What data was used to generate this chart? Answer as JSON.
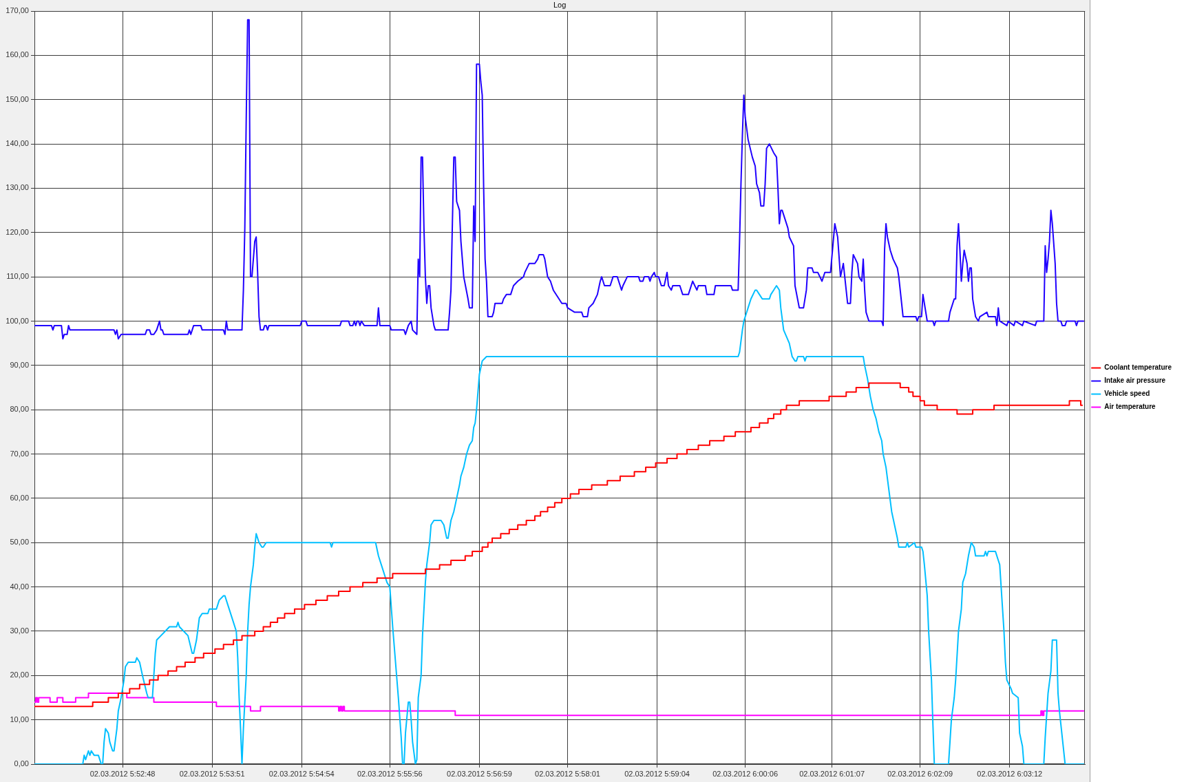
{
  "chart_data": {
    "type": "line",
    "title": "Log",
    "xlim": [
      "2012-03-02T05:51:46",
      "2012-03-02T06:04:05"
    ],
    "ylim": [
      0,
      170
    ],
    "xticks": [
      {
        "value": "2012-03-02T05:52:48",
        "label": "02.03.2012 5:52:48"
      },
      {
        "value": "2012-03-02T05:53:51",
        "label": "02.03.2012 5:53:51"
      },
      {
        "value": "2012-03-02T05:54:54",
        "label": "02.03.2012 5:54:54"
      },
      {
        "value": "2012-03-02T05:55:56",
        "label": "02.03.2012 5:55:56"
      },
      {
        "value": "2012-03-02T05:56:59",
        "label": "02.03.2012 5:56:59"
      },
      {
        "value": "2012-03-02T05:58:01",
        "label": "02.03.2012 5:58:01"
      },
      {
        "value": "2012-03-02T05:59:04",
        "label": "02.03.2012 5:59:04"
      },
      {
        "value": "2012-03-02T06:00:06",
        "label": "02.03.2012 6:00:06"
      },
      {
        "value": "2012-03-02T06:01:07",
        "label": "02.03.2012 6:01:07"
      },
      {
        "value": "2012-03-02T06:02:09",
        "label": "02.03.2012 6:02:09"
      },
      {
        "value": "2012-03-02T06:03:12",
        "label": "02.03.2012 6:03:12"
      }
    ],
    "yticks": [
      {
        "value": 0,
        "label": "0,00"
      },
      {
        "value": 10,
        "label": "10,00"
      },
      {
        "value": 20,
        "label": "20,00"
      },
      {
        "value": 30,
        "label": "30,00"
      },
      {
        "value": 40,
        "label": "40,00"
      },
      {
        "value": 50,
        "label": "50,00"
      },
      {
        "value": 60,
        "label": "60,00"
      },
      {
        "value": 70,
        "label": "70,00"
      },
      {
        "value": 80,
        "label": "80,00"
      },
      {
        "value": 90,
        "label": "90,00"
      },
      {
        "value": 100,
        "label": "100,00"
      },
      {
        "value": 110,
        "label": "110,00"
      },
      {
        "value": 120,
        "label": "120,00"
      },
      {
        "value": 130,
        "label": "130,00"
      },
      {
        "value": 140,
        "label": "140,00"
      },
      {
        "value": 150,
        "label": "150,00"
      },
      {
        "value": 160,
        "label": "160,00"
      },
      {
        "value": 170,
        "label": "170,00"
      }
    ],
    "grid": true,
    "legend": "right",
    "series": [
      {
        "name": "Coolant temperature",
        "type": "step",
        "color": "#ff0000",
        "x": [
          "2012-03-02T05:51:46",
          "2012-03-02T05:52:27",
          "2012-03-02T05:52:38",
          "2012-03-02T05:52:45",
          "2012-03-02T05:52:53",
          "2012-03-02T05:53:00",
          "2012-03-02T05:53:07",
          "2012-03-02T05:53:13",
          "2012-03-02T05:53:20",
          "2012-03-02T05:53:26",
          "2012-03-02T05:53:32",
          "2012-03-02T05:53:39",
          "2012-03-02T05:53:45",
          "2012-03-02T05:53:53",
          "2012-03-02T05:53:59",
          "2012-03-02T05:54:06",
          "2012-03-02T05:54:12",
          "2012-03-02T05:54:21",
          "2012-03-02T05:54:27",
          "2012-03-02T05:54:32",
          "2012-03-02T05:54:37",
          "2012-03-02T05:54:42",
          "2012-03-02T05:54:49",
          "2012-03-02T05:54:56",
          "2012-03-02T05:55:04",
          "2012-03-02T05:55:12",
          "2012-03-02T05:55:20",
          "2012-03-02T05:55:28",
          "2012-03-02T05:55:37",
          "2012-03-02T05:55:47",
          "2012-03-02T05:55:58",
          "2012-03-02T05:56:21",
          "2012-03-02T05:56:31",
          "2012-03-02T05:56:39",
          "2012-03-02T05:56:49",
          "2012-03-02T05:56:54",
          "2012-03-02T05:57:01",
          "2012-03-02T05:57:05",
          "2012-03-02T05:57:08",
          "2012-03-02T05:57:14",
          "2012-03-02T05:57:20",
          "2012-03-02T05:57:26",
          "2012-03-02T05:57:32",
          "2012-03-02T05:57:38",
          "2012-03-02T05:57:42",
          "2012-03-02T05:57:47",
          "2012-03-02T05:57:52",
          "2012-03-02T05:57:57",
          "2012-03-02T05:58:03",
          "2012-03-02T05:58:09",
          "2012-03-02T05:58:18",
          "2012-03-02T05:58:29",
          "2012-03-02T05:58:38",
          "2012-03-02T05:58:48",
          "2012-03-02T05:58:56",
          "2012-03-02T05:59:03",
          "2012-03-02T05:59:11",
          "2012-03-02T05:59:18",
          "2012-03-02T05:59:25",
          "2012-03-02T05:59:33",
          "2012-03-02T05:59:41",
          "2012-03-02T05:59:51",
          "2012-03-02T05:59:59",
          "2012-03-02T06:00:10",
          "2012-03-02T06:00:16",
          "2012-03-02T06:00:22",
          "2012-03-02T06:00:26",
          "2012-03-02T06:00:31",
          "2012-03-02T06:00:35",
          "2012-03-02T06:00:44",
          "2012-03-02T06:01:05",
          "2012-03-02T06:01:17",
          "2012-03-02T06:01:24",
          "2012-03-02T06:01:33",
          "2012-03-02T06:01:55",
          "2012-03-02T06:02:01",
          "2012-03-02T06:02:04",
          "2012-03-02T06:02:09",
          "2012-03-02T06:02:12",
          "2012-03-02T06:02:21",
          "2012-03-02T06:02:35",
          "2012-03-02T06:02:46",
          "2012-03-02T06:03:01",
          "2012-03-02T06:03:54",
          "2012-03-02T06:04:02",
          "2012-03-02T06:04:03"
        ],
        "values": [
          13,
          14,
          15,
          16,
          17,
          18,
          19,
          20,
          21,
          22,
          23,
          24,
          25,
          26,
          27,
          28,
          29,
          30,
          31,
          32,
          33,
          34,
          35,
          36,
          37,
          38,
          39,
          40,
          41,
          42,
          43,
          44,
          45,
          46,
          47,
          48,
          49,
          50,
          51,
          52,
          53,
          54,
          55,
          56,
          57,
          58,
          59,
          60,
          61,
          62,
          63,
          64,
          65,
          66,
          67,
          68,
          69,
          70,
          71,
          72,
          73,
          74,
          75,
          76,
          77,
          78,
          79,
          80,
          81,
          82,
          83,
          84,
          85,
          86,
          85,
          84,
          83,
          82,
          81,
          80,
          79,
          80,
          81,
          82,
          81,
          81
        ]
      },
      {
        "name": "Intake air pressure",
        "color": "#2000ff",
        "x": [
          "2012-03-02T05:51:46",
          "2012-03-02T05:51:58",
          "2012-03-02T05:51:59",
          "2012-03-02T05:52:00",
          "2012-03-02T05:52:05",
          "2012-03-02T05:52:06",
          "2012-03-02T05:52:07",
          "2012-03-02T05:52:09",
          "2012-03-02T05:52:10",
          "2012-03-02T05:52:11",
          "2012-03-02T05:52:42",
          "2012-03-02T05:52:43",
          "2012-03-02T05:52:44",
          "2012-03-02T05:52:45",
          "2012-03-02T05:52:47",
          "2012-03-02T05:53:04",
          "2012-03-02T05:53:05",
          "2012-03-02T05:53:07",
          "2012-03-02T05:53:08",
          "2012-03-02T05:53:10",
          "2012-03-02T05:53:12",
          "2012-03-02T05:53:13",
          "2012-03-02T05:53:14",
          "2012-03-02T05:53:15",
          "2012-03-02T05:53:16",
          "2012-03-02T05:53:17",
          "2012-03-02T05:53:34",
          "2012-03-02T05:53:35",
          "2012-03-02T05:53:36",
          "2012-03-02T05:53:37",
          "2012-03-02T05:53:38",
          "2012-03-02T05:53:43",
          "2012-03-02T05:53:44",
          "2012-03-02T05:53:59",
          "2012-03-02T05:54:00",
          "2012-03-02T05:54:01",
          "2012-03-02T05:54:02",
          "2012-03-02T05:54:12",
          "2012-03-02T05:54:13",
          "2012-03-02T05:54:14",
          "2012-03-02T05:54:15",
          "2012-03-02T05:54:16",
          "2012-03-02T05:54:17",
          "2012-03-02T05:54:18",
          "2012-03-02T05:54:19",
          "2012-03-02T05:54:20",
          "2012-03-02T05:54:21",
          "2012-03-02T05:54:22",
          "2012-03-02T05:54:23",
          "2012-03-02T05:54:24",
          "2012-03-02T05:54:25",
          "2012-03-02T05:54:27",
          "2012-03-02T05:54:28",
          "2012-03-02T05:54:29",
          "2012-03-02T05:54:30",
          "2012-03-02T05:54:31",
          "2012-03-02T05:54:53",
          "2012-03-02T05:54:54",
          "2012-03-02T05:54:57",
          "2012-03-02T05:54:58",
          "2012-03-02T05:55:21",
          "2012-03-02T05:55:22",
          "2012-03-02T05:55:27",
          "2012-03-02T05:55:28",
          "2012-03-02T05:55:30",
          "2012-03-02T05:55:31",
          "2012-03-02T05:55:32",
          "2012-03-02T05:55:33",
          "2012-03-02T05:55:34",
          "2012-03-02T05:55:35",
          "2012-03-02T05:55:36",
          "2012-03-02T05:55:38",
          "2012-03-02T05:55:47",
          "2012-03-02T05:55:48",
          "2012-03-02T05:55:49",
          "2012-03-02T05:55:56",
          "2012-03-02T05:55:57",
          "2012-03-02T05:56:06",
          "2012-03-02T05:56:07",
          "2012-03-02T05:56:08",
          "2012-03-02T05:56:09",
          "2012-03-02T05:56:11",
          "2012-03-02T05:56:12",
          "2012-03-02T05:56:15",
          "2012-03-02T05:56:16",
          "2012-03-02T05:56:17",
          "2012-03-02T05:56:18",
          "2012-03-02T05:56:19",
          "2012-03-02T05:56:20",
          "2012-03-02T05:56:21",
          "2012-03-02T05:56:22",
          "2012-03-02T05:56:23",
          "2012-03-02T05:56:24",
          "2012-03-02T05:56:25",
          "2012-03-02T05:56:27",
          "2012-03-02T05:56:28",
          "2012-03-02T05:56:37",
          "2012-03-02T05:56:38",
          "2012-03-02T05:56:39",
          "2012-03-02T05:56:40",
          "2012-03-02T05:56:41",
          "2012-03-02T05:56:42",
          "2012-03-02T05:56:43",
          "2012-03-02T05:56:45",
          "2012-03-02T05:56:46",
          "2012-03-02T05:56:48",
          "2012-03-02T05:56:51",
          "2012-03-02T05:56:52",
          "2012-03-02T05:56:54",
          "2012-03-02T05:56:55",
          "2012-03-02T05:56:56",
          "2012-03-02T05:56:57",
          "2012-03-02T05:56:59",
          "2012-03-02T05:57:00",
          "2012-03-02T05:57:01",
          "2012-03-02T05:57:02",
          "2012-03-02T05:57:03",
          "2012-03-02T05:57:04",
          "2012-03-02T05:57:05",
          "2012-03-02T05:57:08",
          "2012-03-02T05:57:09",
          "2012-03-02T05:57:10",
          "2012-03-02T05:57:15",
          "2012-03-02T05:57:16",
          "2012-03-02T05:57:18",
          "2012-03-02T05:57:21",
          "2012-03-02T05:57:22",
          "2012-03-02T05:57:23",
          "2012-03-02T05:57:26",
          "2012-03-02T05:57:30",
          "2012-03-02T05:57:31",
          "2012-03-02T05:57:34",
          "2012-03-02T05:57:38",
          "2012-03-02T05:57:40",
          "2012-03-02T05:57:41",
          "2012-03-02T05:57:44",
          "2012-03-02T05:57:45",
          "2012-03-02T05:57:46",
          "2012-03-02T05:57:47",
          "2012-03-02T05:57:49",
          "2012-03-02T05:57:51",
          "2012-03-02T05:57:55",
          "2012-03-02T05:57:57",
          "2012-03-02T05:58:00",
          "2012-03-02T05:58:01",
          "2012-03-02T05:58:06",
          "2012-03-02T05:58:11",
          "2012-03-02T05:58:12",
          "2012-03-02T05:58:15",
          "2012-03-02T05:58:16",
          "2012-03-02T05:58:19",
          "2012-03-02T05:58:22",
          "2012-03-02T05:58:24",
          "2012-03-02T05:58:25",
          "2012-03-02T05:58:27",
          "2012-03-02T05:58:31",
          "2012-03-02T05:58:33",
          "2012-03-02T05:58:36",
          "2012-03-02T05:58:38",
          "2012-03-02T05:58:39",
          "2012-03-02T05:58:40",
          "2012-03-02T05:58:43",
          "2012-03-02T05:58:51",
          "2012-03-02T05:58:52",
          "2012-03-02T05:58:54",
          "2012-03-02T05:58:55",
          "2012-03-02T05:58:58",
          "2012-03-02T05:58:59",
          "2012-03-02T05:59:00",
          "2012-03-02T05:59:02",
          "2012-03-02T05:59:03",
          "2012-03-02T05:59:05",
          "2012-03-02T05:59:07",
          "2012-03-02T05:59:09",
          "2012-03-02T05:59:11",
          "2012-03-02T05:59:12",
          "2012-03-02T05:59:14",
          "2012-03-02T05:59:15",
          "2012-03-02T05:59:20",
          "2012-03-02T05:59:22",
          "2012-03-02T05:59:26",
          "2012-03-02T05:59:29",
          "2012-03-02T05:59:32",
          "2012-03-02T05:59:33",
          "2012-03-02T05:59:38",
          "2012-03-02T05:59:39",
          "2012-03-02T05:59:44",
          "2012-03-02T05:59:45",
          "2012-03-02T05:59:56",
          "2012-03-02T05:59:57",
          "2012-03-02T06:00:01",
          "2012-03-02T06:00:02",
          "2012-03-02T06:00:03",
          "2012-03-02T06:00:04",
          "2012-03-02T06:00:05",
          "2012-03-02T06:00:06",
          "2012-03-02T06:00:08",
          "2012-03-02T06:00:11",
          "2012-03-02T06:00:13",
          "2012-03-02T06:00:14",
          "2012-03-02T06:00:16",
          "2012-03-02T06:00:17",
          "2012-03-02T06:00:19",
          "2012-03-02T06:00:20",
          "2012-03-02T06:00:21",
          "2012-03-02T06:00:23",
          "2012-03-02T06:00:26",
          "2012-03-02T06:00:28",
          "2012-03-02T06:00:29",
          "2012-03-02T06:00:30",
          "2012-03-02T06:00:31",
          "2012-03-02T06:00:32",
          "2012-03-02T06:00:35",
          "2012-03-02T06:00:36",
          "2012-03-02T06:00:37",
          "2012-03-02T06:00:40",
          "2012-03-02T06:00:41",
          "2012-03-02T06:00:44",
          "2012-03-02T06:00:47",
          "2012-03-02T06:00:49",
          "2012-03-02T06:00:50",
          "2012-03-02T06:00:53",
          "2012-03-02T06:00:54",
          "2012-03-02T06:00:57",
          "2012-03-02T06:01:00",
          "2012-03-02T06:01:02",
          "2012-03-02T06:01:06",
          "2012-03-02T06:01:09",
          "2012-03-02T06:01:11",
          "2012-03-02T06:01:13",
          "2012-03-02T06:01:15",
          "2012-03-02T06:01:16",
          "2012-03-02T06:01:18",
          "2012-03-02T06:01:20",
          "2012-03-02T06:01:21",
          "2012-03-02T06:01:22",
          "2012-03-02T06:01:25",
          "2012-03-02T06:01:26",
          "2012-03-02T06:01:28",
          "2012-03-02T06:01:29",
          "2012-03-02T06:01:30",
          "2012-03-02T06:01:31",
          "2012-03-02T06:01:33",
          "2012-03-02T06:01:42",
          "2012-03-02T06:01:43",
          "2012-03-02T06:01:44",
          "2012-03-02T06:01:45",
          "2012-03-02T06:01:46",
          "2012-03-02T06:01:48",
          "2012-03-02T06:01:50",
          "2012-03-02T06:01:53",
          "2012-03-02T06:01:54",
          "2012-03-02T06:01:56",
          "2012-03-02T06:01:57",
          "2012-03-02T06:02:06",
          "2012-03-02T06:02:07",
          "2012-03-02T06:02:08",
          "2012-03-02T06:02:10",
          "2012-03-02T06:02:11",
          "2012-03-02T06:02:12",
          "2012-03-02T06:02:14",
          "2012-03-02T06:02:18",
          "2012-03-02T06:02:19",
          "2012-03-02T06:02:20",
          "2012-03-02T06:02:29",
          "2012-03-02T06:02:30",
          "2012-03-02T06:02:33",
          "2012-03-02T06:02:34",
          "2012-03-02T06:02:35",
          "2012-03-02T06:02:36",
          "2012-03-02T06:02:37",
          "2012-03-02T06:02:38",
          "2012-03-02T06:02:39",
          "2012-03-02T06:02:40",
          "2012-03-02T06:02:42",
          "2012-03-02T06:02:43",
          "2012-03-02T06:02:44",
          "2012-03-02T06:02:45",
          "2012-03-02T06:02:46",
          "2012-03-02T06:02:48",
          "2012-03-02T06:02:50",
          "2012-03-02T06:02:51",
          "2012-03-02T06:02:56",
          "2012-03-02T06:02:57",
          "2012-03-02T06:03:02",
          "2012-03-02T06:03:03",
          "2012-03-02T06:03:04",
          "2012-03-02T06:03:05",
          "2012-03-02T06:03:10",
          "2012-03-02T06:03:11",
          "2012-03-02T06:03:15",
          "2012-03-02T06:03:16",
          "2012-03-02T06:03:21",
          "2012-03-02T06:03:22",
          "2012-03-02T06:03:30",
          "2012-03-02T06:03:31",
          "2012-03-02T06:03:36",
          "2012-03-02T06:03:37",
          "2012-03-02T06:03:38",
          "2012-03-02T06:03:39",
          "2012-03-02T06:03:40",
          "2012-03-02T06:03:41",
          "2012-03-02T06:03:42",
          "2012-03-02T06:03:44",
          "2012-03-02T06:03:45",
          "2012-03-02T06:03:46",
          "2012-03-02T06:03:48",
          "2012-03-02T06:03:49",
          "2012-03-02T06:03:51",
          "2012-03-02T06:03:52",
          "2012-03-02T06:03:58",
          "2012-03-02T06:03:59",
          "2012-03-02T06:04:00",
          "2012-03-02T06:04:04"
        ],
        "values": [
          99,
          99,
          98,
          99,
          99,
          96,
          97,
          97,
          99,
          98,
          98,
          97,
          98,
          96,
          97,
          97,
          98,
          98,
          97,
          97,
          98,
          99,
          100,
          98,
          98,
          97,
          97,
          98,
          97,
          98,
          99,
          99,
          98,
          98,
          97,
          100,
          98,
          98,
          107,
          121,
          146,
          168,
          168,
          110,
          110,
          114,
          118,
          119,
          111,
          101,
          98,
          98,
          99,
          99,
          98,
          99,
          99,
          100,
          100,
          99,
          99,
          100,
          100,
          99,
          99,
          100,
          99,
          100,
          100,
          99,
          100,
          99,
          99,
          103,
          99,
          99,
          98,
          98,
          97,
          98,
          99,
          100,
          98,
          97,
          114,
          110,
          137,
          137,
          121,
          110,
          104,
          108,
          108,
          103,
          99,
          98,
          98,
          102,
          107,
          122,
          137,
          137,
          127,
          125,
          118,
          110,
          105,
          103,
          103,
          126,
          118,
          158,
          158,
          154,
          151,
          130,
          114,
          109,
          101,
          101,
          102,
          104,
          104,
          105,
          106,
          106,
          107,
          108,
          109,
          110,
          111,
          113,
          113,
          114,
          115,
          115,
          114,
          112,
          110,
          109,
          107,
          105,
          104,
          104,
          103,
          102,
          102,
          101,
          101,
          103,
          104,
          106,
          109,
          110,
          108,
          108,
          110,
          110,
          108,
          107,
          108,
          110,
          110,
          109,
          109,
          110,
          110,
          109,
          110,
          111,
          110,
          110,
          108,
          108,
          111,
          108,
          107,
          108,
          108,
          106,
          106,
          109,
          107,
          108,
          108,
          106,
          106,
          108,
          108,
          107,
          107,
          118,
          131,
          142,
          151,
          146,
          141,
          137,
          135,
          131,
          129,
          126,
          126,
          131,
          139,
          140,
          138,
          137,
          130,
          122,
          125,
          125,
          122,
          121,
          119,
          117,
          108,
          103,
          103,
          107,
          112,
          112,
          111,
          111,
          109,
          111,
          111,
          122,
          119,
          110,
          113,
          110,
          104,
          104,
          111,
          115,
          113,
          110,
          109,
          114,
          107,
          102,
          100,
          100,
          99,
          116,
          122,
          119,
          116,
          114,
          112,
          110,
          104,
          101,
          101,
          100,
          101,
          101,
          106,
          104,
          100,
          100,
          99,
          100,
          100,
          102,
          105,
          105,
          117,
          122,
          116,
          109,
          113,
          116,
          113,
          109,
          112,
          112,
          105,
          101,
          100,
          101,
          102,
          101,
          101,
          99,
          103,
          100,
          99,
          100,
          99,
          100,
          99,
          100,
          99,
          100,
          100,
          117,
          111,
          114,
          118,
          125,
          122,
          113,
          104,
          100,
          100,
          99,
          99,
          100,
          100,
          99,
          100,
          100
        ]
      },
      {
        "name": "Vehicle speed",
        "color": "#00bfff",
        "x": [
          "2012-03-02T05:51:46",
          "2012-03-02T05:52:20",
          "2012-03-02T05:52:21",
          "2012-03-02T05:52:22",
          "2012-03-02T05:52:24",
          "2012-03-02T05:52:25",
          "2012-03-02T05:52:26",
          "2012-03-02T05:52:28",
          "2012-03-02T05:52:31",
          "2012-03-02T05:52:33",
          "2012-03-02T05:52:34",
          "2012-03-02T05:52:35",
          "2012-03-02T05:52:36",
          "2012-03-02T05:52:38",
          "2012-03-02T05:52:39",
          "2012-03-02T05:52:41",
          "2012-03-02T05:52:42",
          "2012-03-02T05:52:44",
          "2012-03-02T05:52:45",
          "2012-03-02T05:52:47",
          "2012-03-02T05:52:49",
          "2012-03-02T05:52:50",
          "2012-03-02T05:52:52",
          "2012-03-02T05:52:57",
          "2012-03-02T05:52:58",
          "2012-03-02T05:53:00",
          "2012-03-02T05:53:02",
          "2012-03-02T05:53:05",
          "2012-03-02T05:53:06",
          "2012-03-02T05:53:09",
          "2012-03-02T05:53:10",
          "2012-03-02T05:53:11",
          "2012-03-02T05:53:12",
          "2012-03-02T05:53:15",
          "2012-03-02T05:53:18",
          "2012-03-02T05:53:21",
          "2012-03-02T05:53:26",
          "2012-03-02T05:53:27",
          "2012-03-02T05:53:28",
          "2012-03-02T05:53:31",
          "2012-03-02T05:53:34",
          "2012-03-02T05:53:37",
          "2012-03-02T05:53:38",
          "2012-03-02T05:53:40",
          "2012-03-02T05:53:42",
          "2012-03-02T05:53:44",
          "2012-03-02T05:53:48",
          "2012-03-02T05:53:49",
          "2012-03-02T05:53:54",
          "2012-03-02T05:53:56",
          "2012-03-02T05:53:59",
          "2012-03-02T05:54:00",
          "2012-03-02T05:54:02",
          "2012-03-02T05:54:05",
          "2012-03-02T05:54:08",
          "2012-03-02T05:54:09",
          "2012-03-02T05:54:10",
          "2012-03-02T05:54:11",
          "2012-03-02T05:54:12",
          "2012-03-02T05:54:13",
          "2012-03-02T05:54:15",
          "2012-03-02T05:54:16",
          "2012-03-02T05:54:17",
          "2012-03-02T05:54:18",
          "2012-03-02T05:54:20",
          "2012-03-02T05:54:21",
          "2012-03-02T05:54:22",
          "2012-03-02T05:54:24",
          "2012-03-02T05:54:26",
          "2012-03-02T05:54:27",
          "2012-03-02T05:54:29",
          "2012-03-02T05:55:14",
          "2012-03-02T05:55:15",
          "2012-03-02T05:55:16",
          "2012-03-02T05:55:46",
          "2012-03-02T05:55:48",
          "2012-03-02T05:55:50",
          "2012-03-02T05:55:53",
          "2012-03-02T05:55:54",
          "2012-03-02T05:55:56",
          "2012-03-02T05:55:58",
          "2012-03-02T05:56:00",
          "2012-03-02T05:56:02",
          "2012-03-02T05:56:04",
          "2012-03-02T05:56:05",
          "2012-03-02T05:56:06",
          "2012-03-02T05:56:07",
          "2012-03-02T05:56:09",
          "2012-03-02T05:56:10",
          "2012-03-02T05:56:11",
          "2012-03-02T05:56:12",
          "2012-03-02T05:56:14",
          "2012-03-02T05:56:15",
          "2012-03-02T05:56:16",
          "2012-03-02T05:56:18",
          "2012-03-02T05:56:19",
          "2012-03-02T05:56:20",
          "2012-03-02T05:56:21",
          "2012-03-02T05:56:22",
          "2012-03-02T05:56:24",
          "2012-03-02T05:56:25",
          "2012-03-02T05:56:27",
          "2012-03-02T05:56:32",
          "2012-03-02T05:56:34",
          "2012-03-02T05:56:36",
          "2012-03-02T05:56:37",
          "2012-03-02T05:56:39",
          "2012-03-02T05:56:41",
          "2012-03-02T05:56:43",
          "2012-03-02T05:56:45",
          "2012-03-02T05:56:46",
          "2012-03-02T05:56:48",
          "2012-03-02T05:56:50",
          "2012-03-02T05:56:52",
          "2012-03-02T05:56:54",
          "2012-03-02T05:56:55",
          "2012-03-02T05:56:56",
          "2012-03-02T05:56:57",
          "2012-03-02T05:56:58",
          "2012-03-02T05:56:59",
          "2012-03-02T05:57:01",
          "2012-03-02T05:57:04",
          "2012-03-02T06:00:01",
          "2012-03-02T06:00:02",
          "2012-03-02T06:00:04",
          "2012-03-02T06:00:05",
          "2012-03-02T06:00:08",
          "2012-03-02T06:00:10",
          "2012-03-02T06:00:13",
          "2012-03-02T06:00:14",
          "2012-03-02T06:00:16",
          "2012-03-02T06:00:18",
          "2012-03-02T06:00:23",
          "2012-03-02T06:00:24",
          "2012-03-02T06:00:26",
          "2012-03-02T06:00:28",
          "2012-03-02T06:00:30",
          "2012-03-02T06:00:31",
          "2012-03-02T06:00:33",
          "2012-03-02T06:00:37",
          "2012-03-02T06:00:39",
          "2012-03-02T06:00:41",
          "2012-03-02T06:00:42",
          "2012-03-02T06:00:43",
          "2012-03-02T06:00:47",
          "2012-03-02T06:00:48",
          "2012-03-02T06:00:49",
          "2012-03-02T06:01:29",
          "2012-03-02T06:01:30",
          "2012-03-02T06:01:32",
          "2012-03-02T06:01:34",
          "2012-03-02T06:01:36",
          "2012-03-02T06:01:38",
          "2012-03-02T06:01:40",
          "2012-03-02T06:01:42",
          "2012-03-02T06:01:43",
          "2012-03-02T06:01:45",
          "2012-03-02T06:01:47",
          "2012-03-02T06:01:49",
          "2012-03-02T06:01:51",
          "2012-03-02T06:01:53",
          "2012-03-02T06:01:54",
          "2012-03-02T06:01:59",
          "2012-03-02T06:02:00",
          "2012-03-02T06:02:01",
          "2012-03-02T06:02:05",
          "2012-03-02T06:02:06",
          "2012-03-02T06:02:10",
          "2012-03-02T06:02:11",
          "2012-03-02T06:02:12",
          "2012-03-02T06:02:14",
          "2012-03-02T06:02:15",
          "2012-03-02T06:02:17",
          "2012-03-02T06:02:18",
          "2012-03-02T06:02:19",
          "2012-03-02T06:02:29",
          "2012-03-02T06:02:31",
          "2012-03-02T06:02:33",
          "2012-03-02T06:02:34",
          "2012-03-02T06:02:36",
          "2012-03-02T06:02:38",
          "2012-03-02T06:02:39",
          "2012-03-02T06:02:41",
          "2012-03-02T06:02:43",
          "2012-03-02T06:02:45",
          "2012-03-02T06:02:47",
          "2012-03-02T06:02:48",
          "2012-03-02T06:02:54",
          "2012-03-02T06:02:55",
          "2012-03-02T06:02:56",
          "2012-03-02T06:02:57",
          "2012-03-02T06:03:02",
          "2012-03-02T06:03:04",
          "2012-03-02T06:03:05",
          "2012-03-02T06:03:06",
          "2012-03-02T06:03:08",
          "2012-03-02T06:03:09",
          "2012-03-02T06:03:10",
          "2012-03-02T06:03:13",
          "2012-03-02T06:03:14",
          "2012-03-02T06:03:18",
          "2012-03-02T06:03:19",
          "2012-03-02T06:03:21",
          "2012-03-02T06:03:22",
          "2012-03-02T06:03:36",
          "2012-03-02T06:03:37",
          "2012-03-02T06:03:39",
          "2012-03-02T06:03:41",
          "2012-03-02T06:03:42",
          "2012-03-02T06:03:45",
          "2012-03-02T06:03:46",
          "2012-03-02T06:03:47",
          "2012-03-02T06:03:49",
          "2012-03-02T06:03:51",
          "2012-03-02T06:04:04"
        ],
        "values": [
          0,
          0,
          2,
          1,
          3,
          2,
          3,
          2,
          2,
          0,
          0,
          5,
          8,
          7,
          5,
          3,
          3,
          8,
          12,
          15,
          19,
          22,
          23,
          23,
          24,
          23,
          20,
          16,
          15,
          15,
          20,
          25,
          28,
          29,
          30,
          31,
          31,
          32,
          31,
          30,
          29,
          25,
          25,
          28,
          33,
          34,
          34,
          35,
          35,
          37,
          38,
          38,
          36,
          33,
          30,
          24,
          15,
          8,
          0,
          8,
          20,
          30,
          36,
          40,
          45,
          49,
          52,
          50,
          49,
          49,
          50,
          50,
          49,
          50,
          50,
          47,
          45,
          42,
          41,
          40,
          31,
          23,
          15,
          6,
          0,
          0,
          7,
          14,
          14,
          10,
          5,
          0,
          1,
          15,
          20,
          29,
          35,
          41,
          45,
          50,
          54,
          55,
          55,
          54,
          51,
          51,
          55,
          57,
          60,
          63,
          65,
          67,
          70,
          72,
          73,
          76,
          77,
          80,
          84,
          88,
          91,
          92,
          92,
          93,
          98,
          100,
          103,
          105,
          107,
          107,
          106,
          105,
          105,
          106,
          107,
          108,
          107,
          103,
          98,
          95,
          92,
          91,
          91,
          92,
          92,
          91,
          92,
          92,
          90,
          87,
          83,
          80,
          78,
          75,
          73,
          70,
          67,
          62,
          57,
          54,
          51,
          49,
          49,
          50,
          49,
          50,
          49,
          49,
          48,
          45,
          38,
          30,
          19,
          9,
          0,
          0,
          10,
          15,
          19,
          30,
          35,
          41,
          43,
          47,
          50,
          49,
          47,
          47,
          48,
          47,
          48,
          48,
          46,
          45,
          40,
          30,
          23,
          19,
          17,
          16,
          15,
          7,
          4,
          0,
          0,
          6,
          16,
          21,
          28,
          28,
          16,
          12,
          6,
          0,
          0
        ]
      },
      {
        "name": "Air temperature",
        "type": "step",
        "color": "#ff00ff",
        "x": [
          "2012-03-02T05:51:46",
          "2012-03-02T05:51:47",
          "2012-03-02T05:51:48",
          "2012-03-02T05:51:49",
          "2012-03-02T05:51:57",
          "2012-03-02T05:52:02",
          "2012-03-02T05:52:06",
          "2012-03-02T05:52:15",
          "2012-03-02T05:52:24",
          "2012-03-02T05:52:51",
          "2012-03-02T05:53:10",
          "2012-03-02T05:53:54",
          "2012-03-02T05:54:18",
          "2012-03-02T05:54:25",
          "2012-03-02T05:55:20",
          "2012-03-02T05:55:21",
          "2012-03-02T05:55:22",
          "2012-03-02T05:55:23",
          "2012-03-02T05:55:24",
          "2012-03-02T05:56:42",
          "2012-03-02T06:03:34",
          "2012-03-02T06:03:35",
          "2012-03-02T06:03:36",
          "2012-03-02T06:04:04"
        ],
        "values": [
          14,
          15,
          14,
          15,
          14,
          15,
          14,
          15,
          16,
          15,
          14,
          13,
          12,
          13,
          12,
          13,
          12,
          13,
          12,
          11,
          12,
          11,
          12,
          12
        ]
      }
    ]
  }
}
